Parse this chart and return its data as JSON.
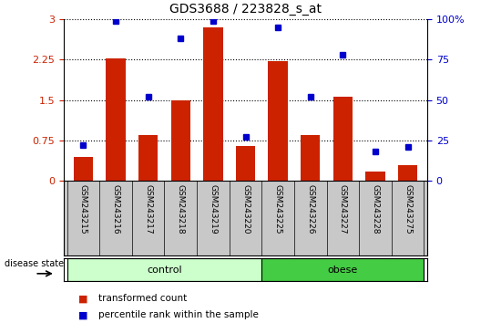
{
  "title": "GDS3688 / 223828_s_at",
  "samples": [
    "GSM243215",
    "GSM243216",
    "GSM243217",
    "GSM243218",
    "GSM243219",
    "GSM243220",
    "GSM243225",
    "GSM243226",
    "GSM243227",
    "GSM243228",
    "GSM243275"
  ],
  "transformed_count": [
    0.45,
    2.28,
    0.85,
    1.5,
    2.85,
    0.65,
    2.22,
    0.85,
    1.57,
    0.18,
    0.3
  ],
  "percentile_rank": [
    22,
    99,
    52,
    88,
    99,
    27,
    95,
    52,
    78,
    18,
    21
  ],
  "disease_state": [
    "control",
    "control",
    "control",
    "control",
    "control",
    "control",
    "obese",
    "obese",
    "obese",
    "obese",
    "obese"
  ],
  "ylim_left": [
    0,
    3
  ],
  "ylim_right": [
    0,
    100
  ],
  "yticks_left": [
    0,
    0.75,
    1.5,
    2.25,
    3
  ],
  "yticks_right": [
    0,
    25,
    50,
    75,
    100
  ],
  "bar_color": "#cc2200",
  "dot_color": "#0000cc",
  "control_color": "#ccffcc",
  "obese_color": "#44cc44",
  "tick_area_color": "#c8c8c8",
  "legend_bar_label": "transformed count",
  "legend_dot_label": "percentile rank within the sample",
  "control_label": "control",
  "obese_label": "obese",
  "disease_state_label": "disease state"
}
